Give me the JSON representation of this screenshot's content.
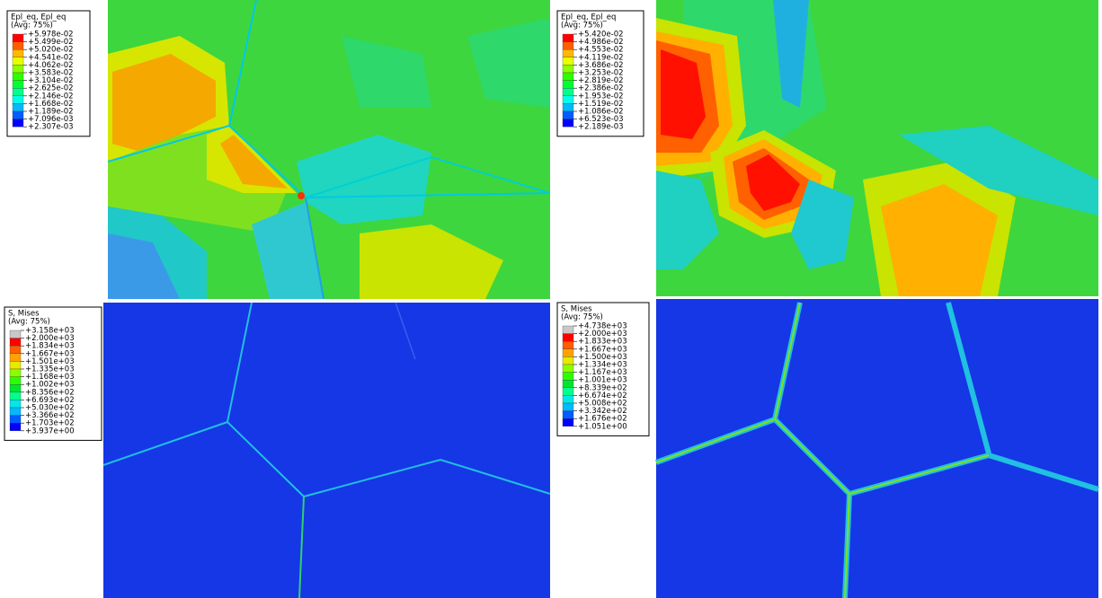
{
  "panels": [
    {
      "legend": {
        "title": [
          "Epl_eq, Epl_eq",
          "(Avg: 75%)"
        ],
        "labels": [
          "+5.978e-02",
          "+5.499e-02",
          "+5.020e-02",
          "+4.541e-02",
          "+4.062e-02",
          "+3.583e-02",
          "+3.104e-02",
          "+2.625e-02",
          "+2.146e-02",
          "+1.668e-02",
          "+1.189e-02",
          "+7.096e-03",
          "+2.307e-03"
        ],
        "colors": [
          "#ff0000",
          "#ff5d00",
          "#ffb900",
          "#e8ff00",
          "#8bff00",
          "#2eff00",
          "#00ff2e",
          "#00ff8b",
          "#00ffe8",
          "#00b9ff",
          "#005dff",
          "#0000ff"
        ]
      }
    },
    {
      "legend": {
        "title": [
          "Epl_eq, Epl_eq",
          "(Avg: 75%)"
        ],
        "labels": [
          "+5.420e-02",
          "+4.986e-02",
          "+4.553e-02",
          "+4.119e-02",
          "+3.686e-02",
          "+3.253e-02",
          "+2.819e-02",
          "+2.386e-02",
          "+1.953e-02",
          "+1.519e-02",
          "+1.086e-02",
          "+6.523e-03",
          "+2.189e-03"
        ],
        "colors": [
          "#ff0000",
          "#ff5d00",
          "#ffb900",
          "#e8ff00",
          "#8bff00",
          "#2eff00",
          "#00ff2e",
          "#00ff8b",
          "#00ffe8",
          "#00b9ff",
          "#005dff",
          "#0000ff"
        ]
      }
    },
    {
      "legend": {
        "title": [
          "S, Mises",
          "(Avg: 75%)"
        ],
        "labels": [
          "+3.158e+03",
          "+2.000e+03",
          "+1.834e+03",
          "+1.667e+03",
          "+1.501e+03",
          "+1.335e+03",
          "+1.168e+03",
          "+1.002e+03",
          "+8.356e+02",
          "+6.693e+02",
          "+5.030e+02",
          "+3.366e+02",
          "+1.703e+02",
          "+3.937e+00"
        ],
        "colors": [
          "#c8c8c8",
          "#ff0000",
          "#ff5d00",
          "#ffa200",
          "#e8e800",
          "#8bff00",
          "#2eff00",
          "#00e62e",
          "#00ff8b",
          "#00e8e8",
          "#00b9ff",
          "#005dff",
          "#0000ff"
        ]
      }
    },
    {
      "legend": {
        "title": [
          "S, Mises",
          "(Avg: 75%)"
        ],
        "labels": [
          "+4.738e+03",
          "+2.000e+03",
          "+1.833e+03",
          "+1.667e+03",
          "+1.500e+03",
          "+1.334e+03",
          "+1.167e+03",
          "+1.001e+03",
          "+8.339e+02",
          "+6.674e+02",
          "+5.008e+02",
          "+3.342e+02",
          "+1.676e+02",
          "+1.051e+00"
        ],
        "colors": [
          "#c8c8c8",
          "#ff0000",
          "#ff5d00",
          "#ffa200",
          "#e8e800",
          "#8bff00",
          "#2eff00",
          "#00e62e",
          "#00ff8b",
          "#00e8e8",
          "#00b9ff",
          "#005dff",
          "#0000ff"
        ]
      }
    }
  ]
}
